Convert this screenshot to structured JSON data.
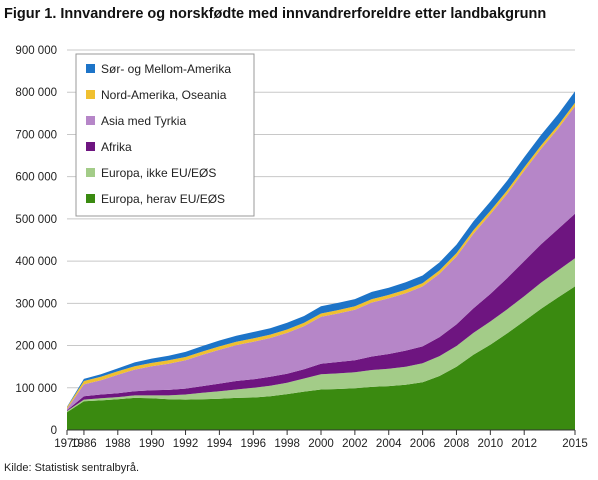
{
  "title": "Figur 1. Innvandrere og norskfødte med innvandrerforeldre etter landbakgrunn",
  "source": "Kilde: Statistisk sentralbyrå.",
  "chart_data": {
    "type": "area",
    "stacked": true,
    "title": "Figur 1. Innvandrere og norskfødte med innvandrerforeldre etter landbakgrunn",
    "xlabel": "",
    "ylabel": "",
    "x": [
      1970,
      1986,
      1987,
      1988,
      1989,
      1990,
      1991,
      1992,
      1993,
      1994,
      1995,
      1996,
      1997,
      1998,
      1999,
      2000,
      2001,
      2002,
      2003,
      2004,
      2005,
      2006,
      2007,
      2008,
      2009,
      2010,
      2011,
      2012,
      2013,
      2014,
      2015
    ],
    "x_tick_labels": [
      "1970",
      "1986",
      "1988",
      "1990",
      "1992",
      "1994",
      "1996",
      "1998",
      "2000",
      "2002",
      "2004",
      "2006",
      "2008",
      "2010",
      "2012",
      "2015"
    ],
    "x_tick_positions": [
      1970,
      1986,
      1988,
      1990,
      1992,
      1994,
      1996,
      1998,
      2000,
      2002,
      2004,
      2006,
      2008,
      2010,
      2012,
      2015
    ],
    "ylim": [
      0,
      900000
    ],
    "y_ticks": [
      0,
      100000,
      200000,
      300000,
      400000,
      500000,
      600000,
      700000,
      800000,
      900000
    ],
    "y_tick_labels": [
      "0",
      "100 000",
      "200 000",
      "300 000",
      "400 000",
      "500 000",
      "600 000",
      "700 000",
      "800 000",
      "900 000"
    ],
    "grid": "horizontal",
    "legend_position": "top-left",
    "series": [
      {
        "name": "Europa, herav EU/EØS",
        "color": "#3a8a10",
        "values": [
          42000,
          68000,
          70000,
          73000,
          76000,
          75000,
          73000,
          72000,
          73000,
          74000,
          76000,
          77000,
          80000,
          85000,
          91000,
          96000,
          97000,
          99000,
          102000,
          104000,
          107000,
          113000,
          128000,
          150000,
          178000,
          202000,
          229000,
          258000,
          287000,
          314000,
          340000
        ]
      },
      {
        "name": "Europa, ikke EU/EØS",
        "color": "#a3cc88",
        "values": [
          3000,
          4000,
          5000,
          5000,
          6000,
          7000,
          9000,
          12000,
          15000,
          18000,
          20000,
          23000,
          25000,
          27000,
          31000,
          36000,
          37000,
          38000,
          40000,
          41000,
          43000,
          45000,
          47000,
          49000,
          52000,
          55000,
          57000,
          59000,
          62000,
          64000,
          67000
        ]
      },
      {
        "name": "Afrika",
        "color": "#6e1580",
        "values": [
          2000,
          8000,
          9000,
          9000,
          10000,
          12000,
          13000,
          14000,
          16000,
          18000,
          20000,
          20000,
          21000,
          21000,
          22000,
          25000,
          27000,
          28000,
          32000,
          35000,
          38000,
          40000,
          45000,
          51000,
          58000,
          65000,
          74000,
          83000,
          91000,
          98000,
          105000
        ]
      },
      {
        "name": "Asia med Tyrkia",
        "color": "#b686c8",
        "values": [
          3000,
          28000,
          34000,
          44000,
          51000,
          57000,
          62000,
          67000,
          74000,
          80000,
          85000,
          89000,
          92000,
          97000,
          102000,
          111000,
          115000,
          120000,
          128000,
          132000,
          136000,
          142000,
          150000,
          161000,
          177000,
          189000,
          200000,
          214000,
          226000,
          238000,
          255000
        ]
      },
      {
        "name": "Nord-Amerika, Oseania",
        "color": "#f0c030",
        "values": [
          4000,
          8000,
          8000,
          8000,
          8000,
          8000,
          8000,
          8000,
          8000,
          8000,
          8000,
          8000,
          8000,
          8000,
          8000,
          8000,
          8000,
          8000,
          8000,
          8000,
          8000,
          8000,
          8000,
          8000,
          8000,
          8000,
          8000,
          8000,
          8000,
          8000,
          8000
        ]
      },
      {
        "name": "Sør- og Mellom-Amerika",
        "color": "#1d74c8",
        "values": [
          1000,
          5000,
          6000,
          7000,
          9000,
          10000,
          11000,
          12000,
          13000,
          14000,
          14000,
          15000,
          15000,
          16000,
          16000,
          17000,
          17000,
          17000,
          17000,
          17000,
          18000,
          18000,
          19000,
          20000,
          21000,
          22000,
          23000,
          24000,
          25000,
          26000,
          27000
        ]
      }
    ]
  }
}
